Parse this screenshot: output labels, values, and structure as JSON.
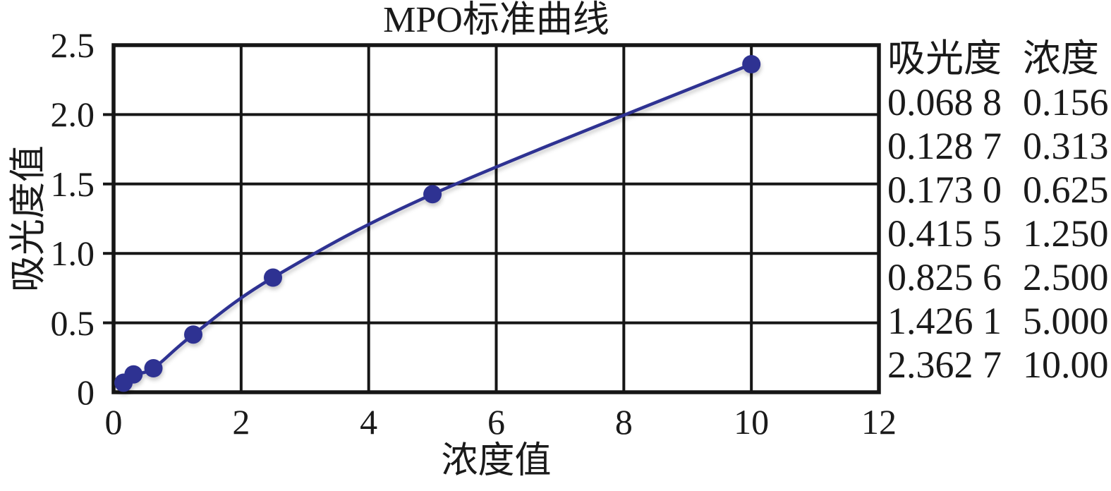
{
  "title": "MPO标准曲线",
  "axes": {
    "x_label": "浓度值",
    "y_label": "吸光度值"
  },
  "side_table": {
    "headers": [
      "吸光度",
      "浓度"
    ],
    "rows": [
      [
        "0.068 8",
        "0.156"
      ],
      [
        "0.128 7",
        "0.313"
      ],
      [
        "0.173 0",
        "0.625"
      ],
      [
        "0.415 5",
        "1.250"
      ],
      [
        "0.825 6",
        "2.500"
      ],
      [
        "1.426 1",
        "5.000"
      ],
      [
        "2.362 7",
        "10.00"
      ]
    ]
  },
  "chart_data": {
    "type": "line",
    "title": "MPO标准曲线",
    "xlabel": "浓度值",
    "ylabel": "吸光度值",
    "xlim": [
      0,
      12
    ],
    "ylim": [
      0,
      2.5
    ],
    "x_ticks": [
      0,
      2,
      4,
      6,
      8,
      10,
      12
    ],
    "x_tick_labels": [
      "0",
      "2",
      "4",
      "6",
      "8",
      "10",
      "12"
    ],
    "y_ticks": [
      0,
      0.5,
      1.0,
      1.5,
      2.0,
      2.5
    ],
    "y_tick_labels": [
      "0",
      "0.5",
      "1.0",
      "1.5",
      "2.0",
      "2.5"
    ],
    "grid": true,
    "legend_position": "none",
    "series": [
      {
        "name": "MPO标准曲线",
        "x": [
          0.156,
          0.313,
          0.625,
          1.25,
          2.5,
          5.0,
          10.0
        ],
        "y": [
          0.0688,
          0.1287,
          0.173,
          0.4155,
          0.8256,
          1.4261,
          2.3627
        ]
      }
    ],
    "colors": {
      "line": "#2e3192",
      "marker": "#2e3192",
      "grid": "#161616",
      "border": "#161616",
      "text": "#1a1a1a"
    }
  }
}
